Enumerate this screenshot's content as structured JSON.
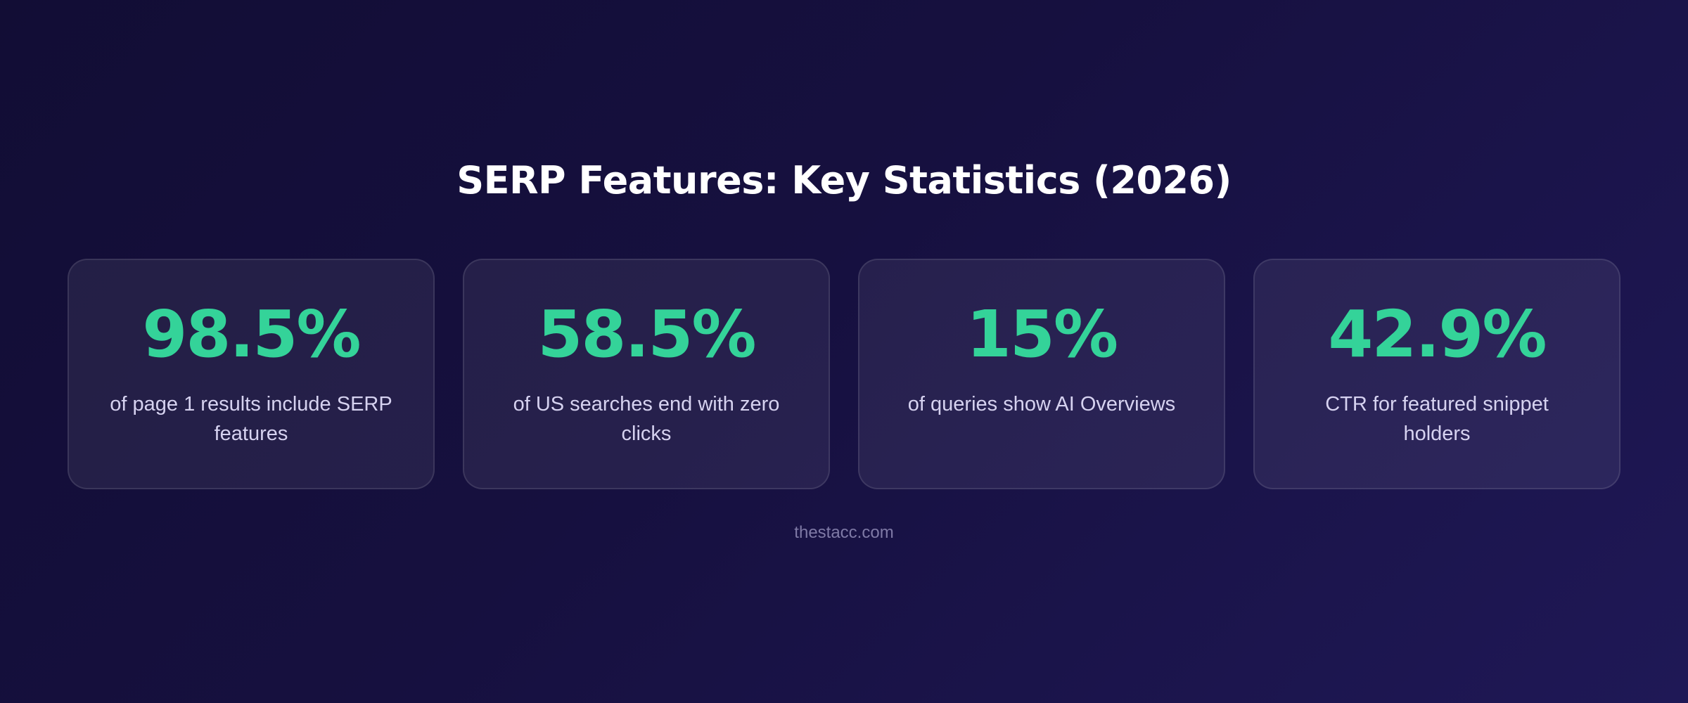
{
  "title": "SERP Features: Key Statistics (2026)",
  "stats": [
    {
      "value": "98.5%",
      "description": "of page 1 results include SERP features"
    },
    {
      "value": "58.5%",
      "description": "of US searches end with zero clicks"
    },
    {
      "value": "15%",
      "description": "of queries show AI Overviews"
    },
    {
      "value": "42.9%",
      "description": "CTR for featured snippet holders"
    }
  ],
  "footer": "thestacc.com",
  "colors": {
    "accent": "#34d399",
    "background_start": "#120d35",
    "background_end": "#1f1856",
    "description_text": "#d6d2f0",
    "footer_text": "#7f7aa6"
  }
}
